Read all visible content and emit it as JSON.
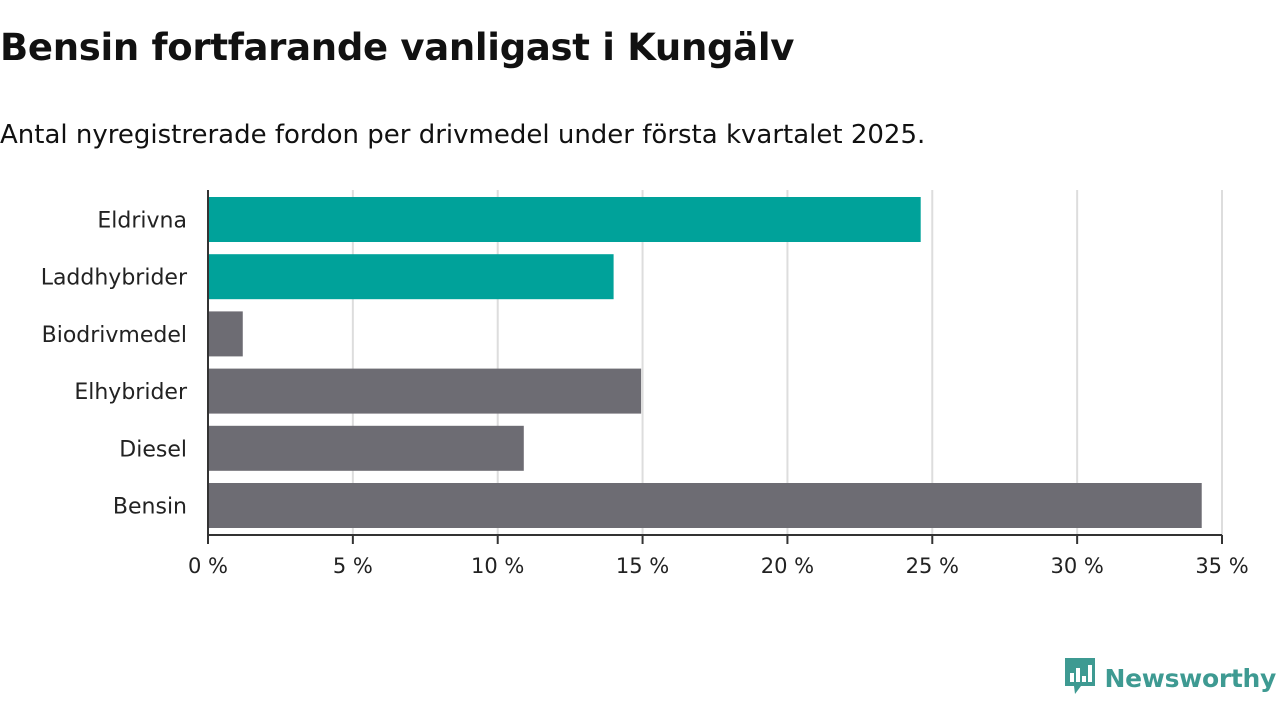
{
  "title": "Bensin fortfarande vanligast i Kungälv",
  "subtitle": "Antal nyregistrerade fordon per drivmedel under första kvartalet 2025.",
  "brand": {
    "name": "Newsworthy",
    "logo_icon": "newsworthy-bar-chart-speech-bubble-icon",
    "color": "#3e9a92"
  },
  "colors": {
    "highlight": "#00a29a",
    "default": "#6d6c73",
    "grid": "#dddddd",
    "axis": "#333333"
  },
  "chart_data": {
    "type": "bar",
    "orientation": "horizontal",
    "categories": [
      "Eldrivna",
      "Laddhybrider",
      "Biodrivmedel",
      "Elhybrider",
      "Diesel",
      "Bensin"
    ],
    "values": [
      24.6,
      14.0,
      1.2,
      14.95,
      10.9,
      34.3
    ],
    "highlighted": [
      true,
      true,
      false,
      false,
      false,
      false
    ],
    "xlim": [
      0,
      35
    ],
    "xticks": [
      0,
      5,
      10,
      15,
      20,
      25,
      30,
      35
    ],
    "xtick_labels": [
      "0 %",
      "5 %",
      "10 %",
      "15 %",
      "20 %",
      "25 %",
      "30 %",
      "35 %"
    ],
    "xlabel": "",
    "ylabel": "",
    "grid": true
  }
}
